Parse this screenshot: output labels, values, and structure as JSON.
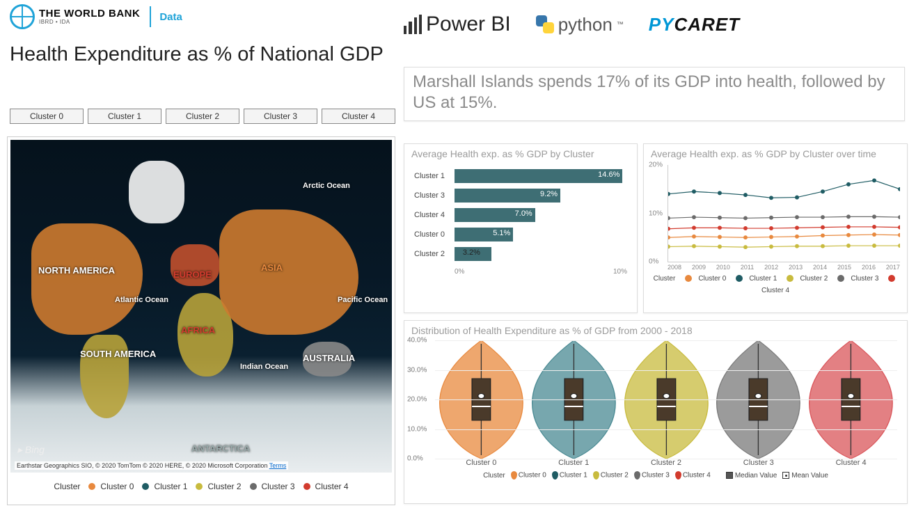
{
  "header": {
    "org_name": "THE WORLD BANK",
    "org_sub": "IBRD • IDA",
    "data_label": "Data",
    "title": "Health Expenditure as % of National GDP"
  },
  "clusters": {
    "buttons": [
      "Cluster 0",
      "Cluster 1",
      "Cluster 2",
      "Cluster 3",
      "Cluster 4"
    ],
    "colors": {
      "Cluster 0": "#e8893e",
      "Cluster 1": "#1f5c64",
      "Cluster 2": "#c8bb3e",
      "Cluster 3": "#6b6b6b",
      "Cluster 4": "#d23b2e"
    }
  },
  "logos": {
    "powerbi": "Power BI",
    "python": "python",
    "python_tm": "™",
    "pycaret_a": "PY",
    "pycaret_b": "CARET"
  },
  "insight": {
    "text": "Marshall Islands spends 17% of its GDP into health, followed by US at 15%."
  },
  "map": {
    "continents": {
      "na": "NORTH AMERICA",
      "sa": "SOUTH AMERICA",
      "eu": "EUROPE",
      "af": "AFRICA",
      "as": "ASIA",
      "au": "AUSTRALIA",
      "an": "ANTARCTICA"
    },
    "oceans": {
      "arctic": "Arctic Ocean",
      "atlantic": "Atlantic Ocean",
      "pacific": "Pacific Ocean",
      "indian": "Indian Ocean"
    },
    "bing": "Bing",
    "attribution": "Earthstar Geographics SIO, © 2020 TomTom © 2020 HERE, © 2020 Microsoft Corporation",
    "terms": "Terms",
    "legend_title": "Cluster"
  },
  "bar_chart": {
    "title": "Average Health exp. as % GDP by Cluster",
    "type": "bar",
    "x_max": 15,
    "ticks": [
      "0%",
      "10%"
    ],
    "rows": [
      {
        "label": "Cluster 1",
        "value": 14.6,
        "display": "14.6%",
        "val_color": "#fff"
      },
      {
        "label": "Cluster 3",
        "value": 9.2,
        "display": "9.2%",
        "val_color": "#fff"
      },
      {
        "label": "Cluster 4",
        "value": 7.0,
        "display": "7.0%",
        "val_color": "#fff"
      },
      {
        "label": "Cluster 0",
        "value": 5.1,
        "display": "5.1%",
        "val_color": "#fff"
      },
      {
        "label": "Cluster 2",
        "value": 3.2,
        "display": "3.2%",
        "val_color": "#222"
      }
    ],
    "bar_color": "#3e6e74"
  },
  "line_chart": {
    "title": "Average Health exp. as % GDP by Cluster over time",
    "type": "line",
    "ylim": [
      0,
      20
    ],
    "yticks": [
      "0%",
      "10%",
      "20%"
    ],
    "xcats": [
      "2008",
      "2009",
      "2010",
      "2011",
      "2012",
      "2013",
      "2014",
      "2015",
      "2016",
      "2017"
    ],
    "series": [
      {
        "name": "Cluster 0",
        "color": "#e8893e",
        "values": [
          5.0,
          5.2,
          5.1,
          5.0,
          5.1,
          5.2,
          5.4,
          5.5,
          5.6,
          5.5
        ]
      },
      {
        "name": "Cluster 1",
        "color": "#1f5c64",
        "values": [
          14.0,
          14.5,
          14.2,
          13.8,
          13.2,
          13.3,
          14.5,
          16.0,
          16.8,
          15.0
        ]
      },
      {
        "name": "Cluster 2",
        "color": "#c8bb3e",
        "values": [
          3.1,
          3.2,
          3.1,
          3.0,
          3.1,
          3.2,
          3.2,
          3.3,
          3.3,
          3.3
        ]
      },
      {
        "name": "Cluster 3",
        "color": "#6b6b6b",
        "values": [
          9.0,
          9.2,
          9.1,
          9.0,
          9.1,
          9.2,
          9.2,
          9.3,
          9.3,
          9.2
        ]
      },
      {
        "name": "Cluster 4",
        "color": "#d23b2e",
        "values": [
          6.8,
          7.0,
          7.0,
          6.9,
          6.9,
          7.0,
          7.1,
          7.2,
          7.2,
          7.1
        ]
      }
    ],
    "legend_title": "Cluster"
  },
  "violin_chart": {
    "title": "Distribution of Health Expenditure as % of GDP from 2000 - 2018",
    "type": "violin",
    "ylim": [
      0,
      40
    ],
    "yticks": [
      "0.0%",
      "10.0%",
      "20.0%",
      "30.0%",
      "40.0%"
    ],
    "categories": [
      "Cluster 0",
      "Cluster 1",
      "Cluster 2",
      "Cluster 3",
      "Cluster 4"
    ],
    "fills": [
      "#e8893e",
      "#4a8a93",
      "#c8bb3e",
      "#7a7a7a",
      "#d9555a"
    ],
    "median_label": "Median Value",
    "mean_label": "Mean Value",
    "legend_title": "Cluster"
  }
}
